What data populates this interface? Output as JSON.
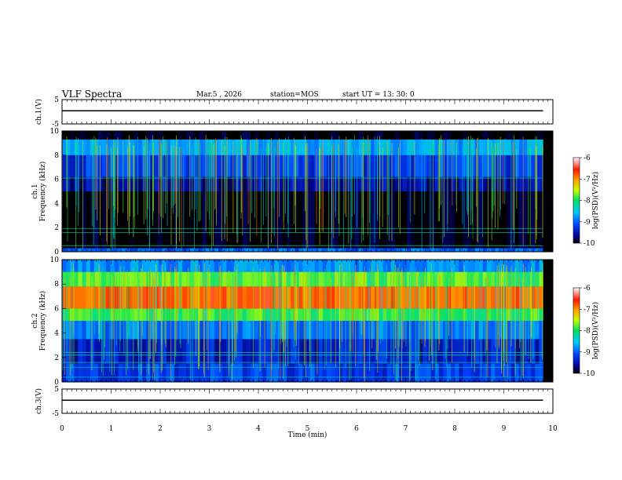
{
  "header": {
    "title": "VLF Spectra",
    "date": "Mar.5 , 2026",
    "station": "station=MOS",
    "start_ut": "start UT =  13: 30: 0"
  },
  "chart_data": [
    {
      "type": "line",
      "panel": "ch1-waveform",
      "ylabel": "ch.1(V)",
      "ylim": [
        -5,
        5
      ],
      "yticks": [
        "5",
        "-5"
      ],
      "series": [
        {
          "x": [
            0,
            9.8
          ],
          "y": [
            0.4,
            0.4
          ]
        }
      ]
    },
    {
      "type": "heatmap",
      "panel": "ch1-spectrogram",
      "ylabel": "ch.1\nFrequency (kHz)",
      "ylim": [
        0,
        10
      ],
      "yticks": [
        "0",
        "2",
        "4",
        "6",
        "8",
        "10"
      ],
      "data_xmax": 9.8,
      "colorbar": {
        "label": "log(PSD)(V²/Hz)",
        "range": [
          -10,
          -6
        ],
        "ticks": [
          "-6",
          "-7",
          "-8",
          "-9",
          "-10"
        ]
      },
      "bands_log_psd": [
        {
          "fmin": 0,
          "fmax": 0.3,
          "value": -9.0
        },
        {
          "fmin": 0.3,
          "fmax": 5.0,
          "value": -10.0
        },
        {
          "fmin": 5.0,
          "fmax": 6.2,
          "value": -9.6
        },
        {
          "fmin": 6.2,
          "fmax": 8.0,
          "value": -9.2
        },
        {
          "fmin": 8.0,
          "fmax": 9.3,
          "value": -8.7
        },
        {
          "fmin": 9.3,
          "fmax": 10.0,
          "value": -10.0
        }
      ],
      "lines_khz": [
        0.5,
        1.6,
        1.9,
        6.1
      ]
    },
    {
      "type": "heatmap",
      "panel": "ch2-spectrogram",
      "ylabel": "ch.2\nFrequency (kHz)",
      "ylim": [
        0,
        10
      ],
      "yticks": [
        "0",
        "2",
        "4",
        "6",
        "8",
        "10"
      ],
      "data_xmax": 9.8,
      "colorbar": {
        "label": "log(PSD)(V²/Hz)",
        "range": [
          -10,
          -6
        ],
        "ticks": [
          "-6",
          "-7",
          "-8",
          "-9",
          "-10"
        ]
      },
      "bands_log_psd": [
        {
          "fmin": 0,
          "fmax": 1.5,
          "value": -9.2
        },
        {
          "fmin": 1.5,
          "fmax": 3.5,
          "value": -9.4
        },
        {
          "fmin": 3.5,
          "fmax": 5.0,
          "value": -8.9
        },
        {
          "fmin": 5.0,
          "fmax": 6.0,
          "value": -7.9
        },
        {
          "fmin": 6.0,
          "fmax": 7.8,
          "value": -6.8
        },
        {
          "fmin": 7.8,
          "fmax": 9.0,
          "value": -7.8
        },
        {
          "fmin": 9.0,
          "fmax": 10.0,
          "value": -8.8
        }
      ],
      "lines_khz": [
        0.4,
        1.2,
        1.6,
        2.2,
        2.4
      ]
    },
    {
      "type": "line",
      "panel": "ch3-waveform",
      "ylabel": "ch.3(V)",
      "ylim": [
        -5,
        5
      ],
      "yticks": [
        "5",
        "-5"
      ],
      "xlabel": "Time (min)",
      "xlim": [
        0,
        10
      ],
      "xticks": [
        "0",
        "1",
        "2",
        "3",
        "4",
        "5",
        "6",
        "7",
        "8",
        "9",
        "10"
      ],
      "series": [
        {
          "x": [
            0,
            9.8
          ],
          "y": [
            0.4,
            0.4
          ]
        }
      ]
    }
  ],
  "colors": {
    "axes": "#000000",
    "spectrogram_background": "#000000"
  }
}
